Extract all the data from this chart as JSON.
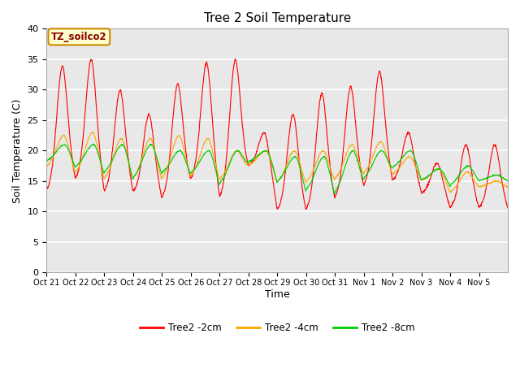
{
  "title": "Tree 2 Soil Temperature",
  "xlabel": "Time",
  "ylabel": "Soil Temperature (C)",
  "legend_label": "TZ_soilco2",
  "series_labels": [
    "Tree2 -2cm",
    "Tree2 -4cm",
    "Tree2 -8cm"
  ],
  "series_colors": [
    "#ff0000",
    "#ffa500",
    "#00cc00"
  ],
  "ylim": [
    0,
    40
  ],
  "yticks": [
    0,
    5,
    10,
    15,
    20,
    25,
    30,
    35,
    40
  ],
  "xtick_labels": [
    "Oct 21",
    "Oct 22",
    "Oct 23",
    "Oct 24",
    "Oct 25",
    "Oct 26",
    "Oct 27",
    "Oct 28",
    "Oct 29",
    "Oct 30",
    "Oct 31",
    "Nov 1",
    "Nov 2",
    "Nov 3",
    "Nov 4",
    "Nov 5"
  ],
  "background_color": "#ffffff",
  "plot_bg_color": "#e8e8e8",
  "grid_color": "#ffffff",
  "n_days": 16,
  "red_peaks": [
    34.0,
    35.0,
    30.0,
    26.0,
    31.0,
    34.5,
    35.0,
    23.0,
    26.0,
    29.5,
    30.5,
    33.0,
    23.0,
    18.0,
    21.0,
    21.0
  ],
  "red_mins": [
    13.0,
    15.0,
    13.0,
    13.0,
    12.0,
    15.0,
    12.0,
    17.5,
    10.0,
    10.0,
    12.0,
    14.0,
    15.0,
    13.0,
    10.5,
    10.5
  ],
  "orange_peaks": [
    22.5,
    23.0,
    22.0,
    22.0,
    22.5,
    22.0,
    20.0,
    20.0,
    20.0,
    20.0,
    21.0,
    21.5,
    19.0,
    17.0,
    16.5,
    15.0
  ],
  "orange_mins": [
    17.0,
    16.0,
    15.0,
    15.0,
    15.0,
    15.5,
    15.0,
    17.5,
    14.5,
    14.5,
    15.0,
    16.0,
    16.0,
    15.0,
    13.0,
    14.0
  ],
  "green_peaks": [
    21.0,
    21.0,
    21.0,
    21.0,
    20.0,
    20.0,
    20.0,
    20.0,
    19.0,
    19.0,
    20.0,
    20.0,
    20.0,
    17.0,
    17.5,
    16.0
  ],
  "green_mins": [
    18.0,
    17.0,
    16.0,
    15.0,
    16.0,
    16.0,
    14.0,
    18.0,
    14.5,
    13.0,
    12.5,
    15.0,
    17.0,
    15.0,
    14.0,
    15.0
  ]
}
